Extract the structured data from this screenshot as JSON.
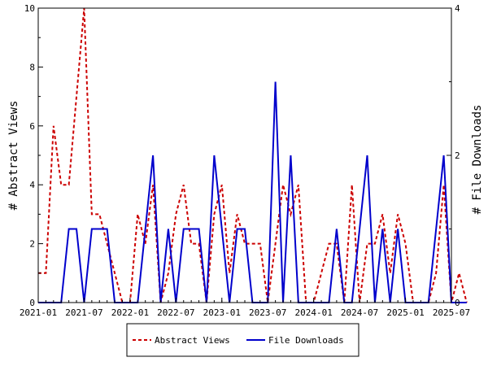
{
  "chart_data": {
    "type": "line",
    "title": "",
    "xlabel": "",
    "ylabel_left": "# Abstract Views",
    "ylabel_right": "# File Downloads",
    "ylim_left": [
      0,
      10
    ],
    "ylim_right": [
      0,
      4
    ],
    "yticks_left": [
      "0",
      "2",
      "4",
      "6",
      "8",
      "10"
    ],
    "yticks_right": [
      "0",
      "2",
      "4"
    ],
    "xticks": [
      "2021-01",
      "2021-07",
      "2022-01",
      "2022-07",
      "2023-01",
      "2023-07",
      "2024-01",
      "2024-07",
      "2025-01",
      "2025-07"
    ],
    "x_start": "2021-01",
    "x_end": "2025-07",
    "grid": false,
    "legend_position": "bottom",
    "series": [
      {
        "name": "Abstract Views",
        "axis": "left",
        "color": "#cc0000",
        "style": "dashed",
        "values": [
          1,
          1,
          6,
          4,
          4,
          7,
          10,
          3,
          3,
          2,
          1,
          0,
          0,
          3,
          2,
          4,
          0,
          1,
          3,
          4,
          2,
          2,
          0,
          3,
          4,
          1,
          3,
          2,
          2,
          2,
          0,
          2,
          4,
          3,
          4,
          0,
          0,
          1,
          2,
          2,
          0,
          4,
          0,
          2,
          2,
          3,
          1,
          3,
          2,
          0,
          0,
          0,
          1,
          4,
          0,
          1,
          0
        ]
      },
      {
        "name": "File Downloads",
        "axis": "right",
        "color": "#0000cc",
        "style": "solid",
        "values": [
          0,
          0,
          0,
          0,
          1,
          1,
          0,
          1,
          1,
          1,
          0,
          0,
          0,
          0,
          1,
          2,
          0,
          1,
          0,
          1,
          1,
          1,
          0,
          2,
          1,
          0,
          1,
          1,
          0,
          0,
          0,
          3,
          0,
          2,
          0,
          0,
          0,
          0,
          0,
          1,
          0,
          0,
          1,
          2,
          0,
          1,
          0,
          1,
          0,
          0,
          0,
          0,
          1,
          2,
          0,
          0,
          0
        ]
      }
    ]
  }
}
